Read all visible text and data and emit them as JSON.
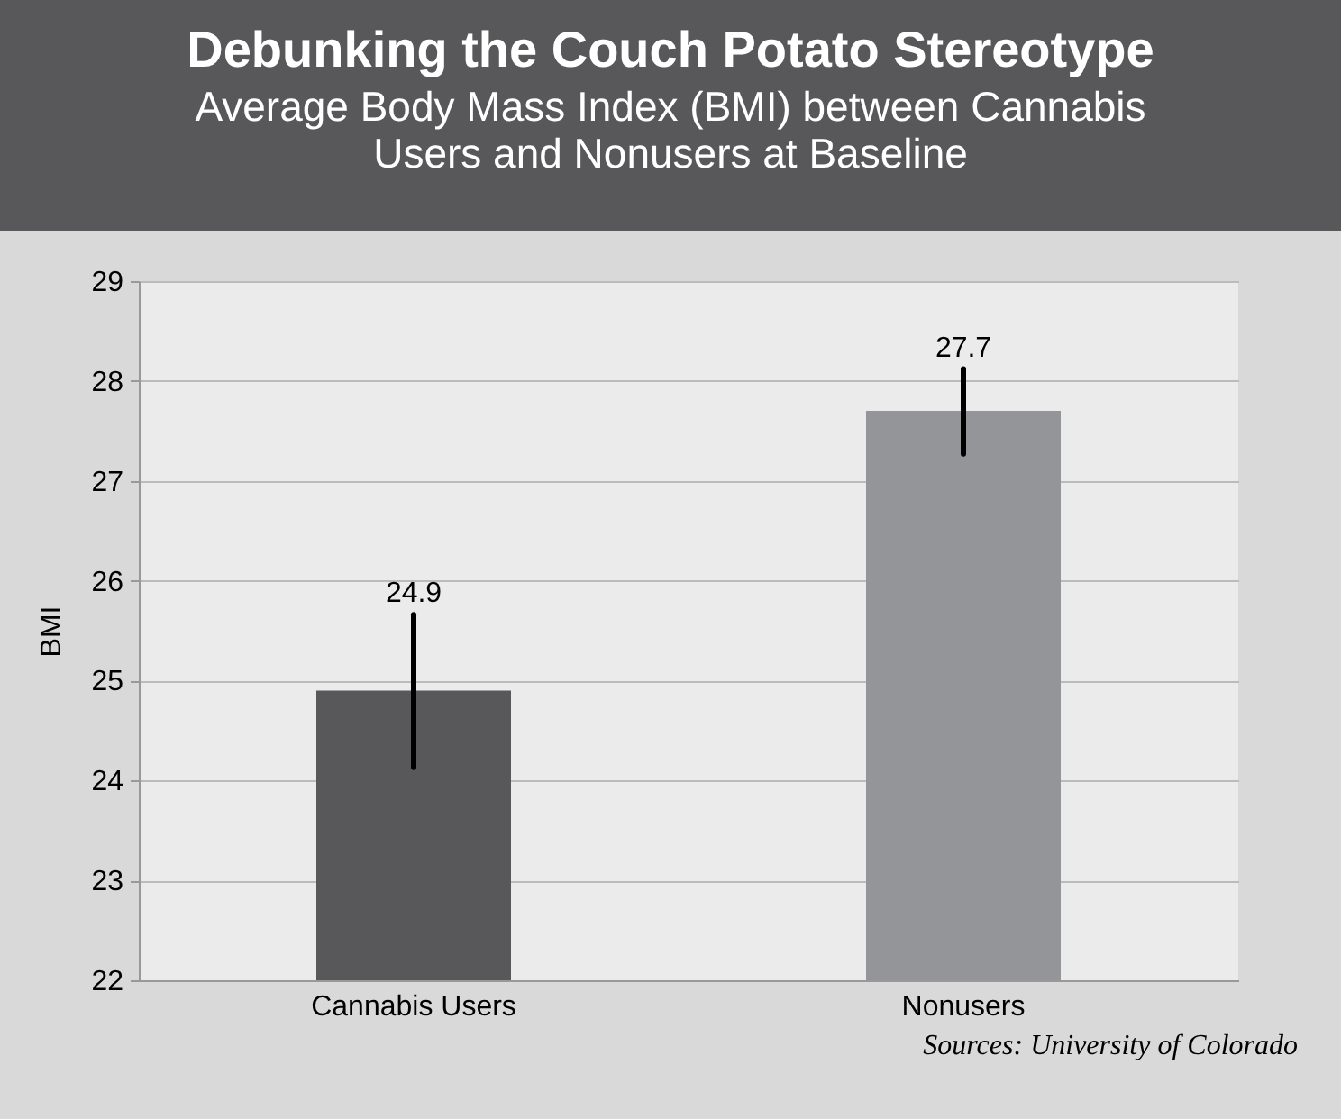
{
  "chart_data": {
    "type": "bar",
    "title": "Debunking the Couch Potato Stereotype",
    "subtitle": "Average Body Mass Index (BMI) between Cannabis Users and Nonusers at Baseline",
    "ylabel": "BMI",
    "categories": [
      "Cannabis Users",
      "Nonusers"
    ],
    "values": [
      24.9,
      27.7
    ],
    "colors": [
      "#58585a",
      "#939598"
    ],
    "errors": [
      [
        24.13,
        25.66
      ],
      [
        27.27,
        28.12
      ]
    ],
    "ylim": [
      22,
      29
    ],
    "yticks": [
      22,
      23,
      24,
      25,
      26,
      27,
      28,
      29
    ],
    "grid": "y",
    "data_labels": true,
    "annotations": [
      "Sources: University of Colorado"
    ]
  }
}
